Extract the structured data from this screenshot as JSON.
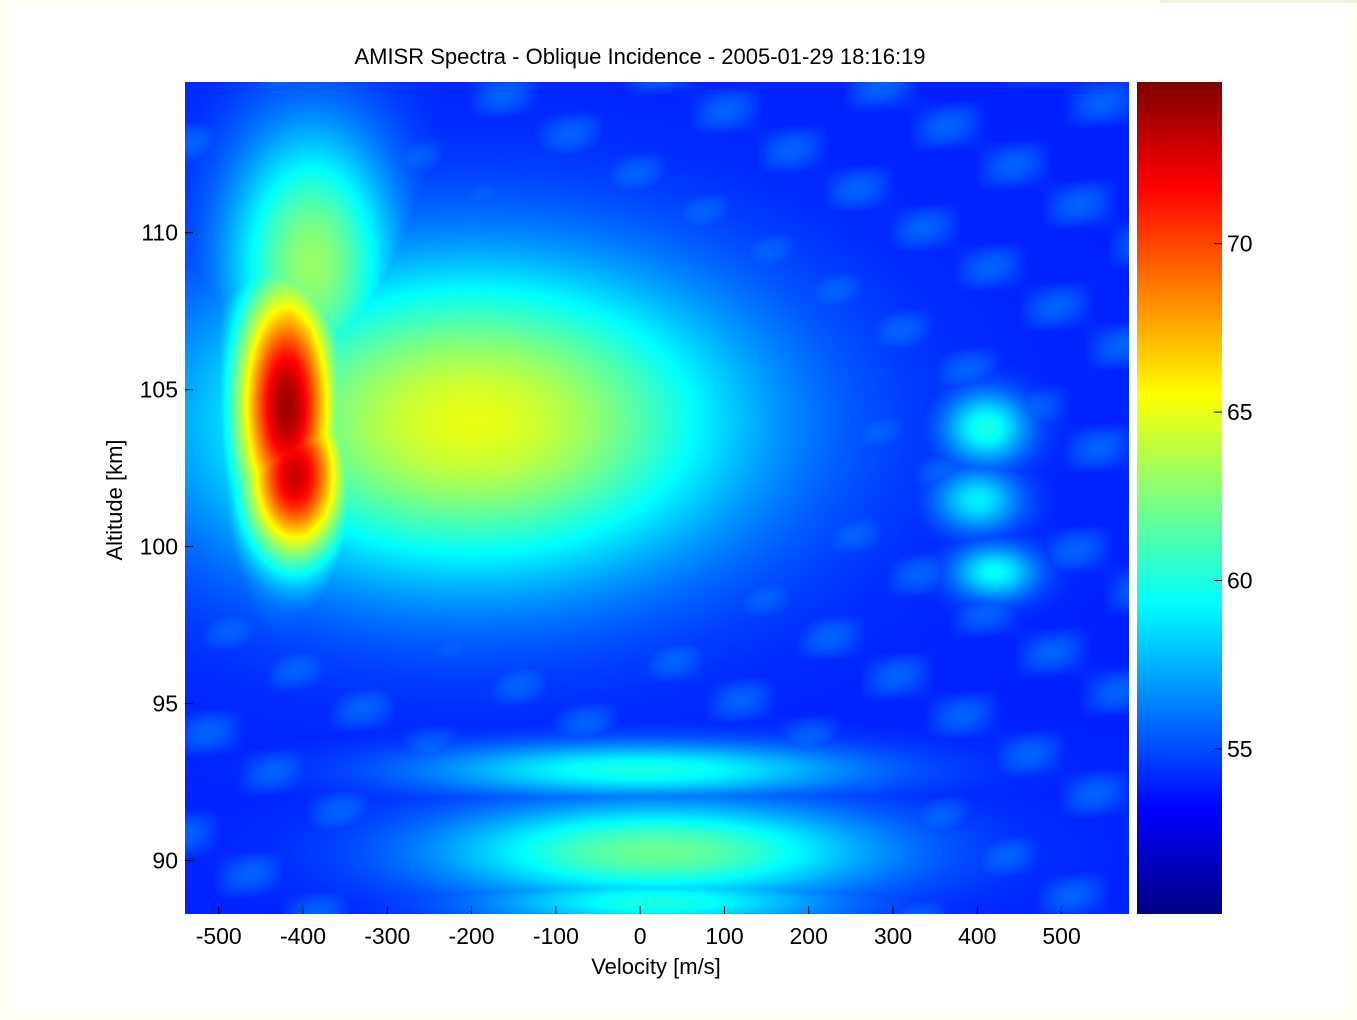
{
  "chart_data": {
    "type": "heatmap",
    "title": "AMISR Spectra - Oblique Incidence - 2005-01-29 18:16:19",
    "xlabel": "Velocity [m/s]",
    "ylabel": "Altitude [km]",
    "xlim": [
      -540,
      580
    ],
    "ylim": [
      88.3,
      114.8
    ],
    "xticks": [
      -500,
      -400,
      -300,
      -200,
      -100,
      0,
      100,
      200,
      300,
      400,
      500
    ],
    "yticks": [
      90,
      95,
      100,
      105,
      110
    ],
    "colorbar": {
      "colormap": "jet",
      "range": [
        50.1,
        74.8
      ],
      "ticks": [
        55,
        60,
        65,
        70
      ]
    },
    "features": [
      {
        "v": -420,
        "alt": 104.5,
        "value": 74,
        "sv": 45,
        "salt": 3.0
      },
      {
        "v": -410,
        "alt": 102.3,
        "value": 73,
        "sv": 45,
        "salt": 2.0
      },
      {
        "v": -200,
        "alt": 104,
        "value": 65,
        "sv": 220,
        "salt": 3.5
      },
      {
        "v": -390,
        "alt": 109,
        "value": 63,
        "sv": 70,
        "salt": 3
      },
      {
        "v": 0,
        "alt": 92.9,
        "value": 60,
        "sv": 180,
        "salt": 0.6
      },
      {
        "v": 20,
        "alt": 90.3,
        "value": 62,
        "sv": 180,
        "salt": 1.1
      },
      {
        "v": 20,
        "alt": 88.7,
        "value": 60,
        "sv": 150,
        "salt": 0.6
      },
      {
        "v": 410,
        "alt": 103.8,
        "value": 60,
        "sv": 35,
        "salt": 0.8
      },
      {
        "v": 400,
        "alt": 101.5,
        "value": 59,
        "sv": 35,
        "salt": 0.7
      },
      {
        "v": 420,
        "alt": 99.2,
        "value": 59.5,
        "sv": 35,
        "salt": 0.6
      }
    ],
    "background_value": 54
  }
}
